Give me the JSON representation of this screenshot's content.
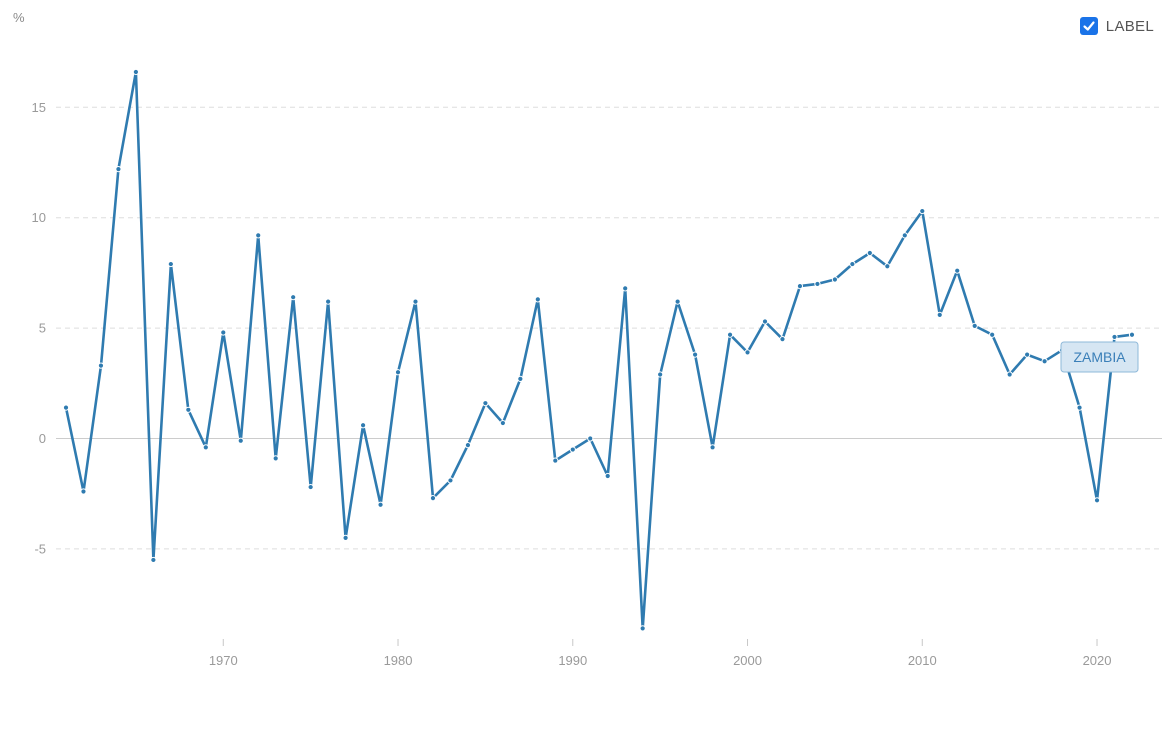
{
  "controls": {
    "label_toggle": "LABEL",
    "label_checked": true
  },
  "colors": {
    "series": "#2f7bb0",
    "grid": "#dddddd",
    "zero": "#cccccc",
    "checkbox": "#1a73e8"
  },
  "chart_data": {
    "type": "line",
    "title": "",
    "xlabel": "",
    "ylabel": "%",
    "xlim": [
      1960,
      2022
    ],
    "ylim": [
      -9,
      17
    ],
    "x_ticks": [
      1970,
      1980,
      1990,
      2000,
      2010,
      2020
    ],
    "y_ticks": [
      -5,
      0,
      5,
      10,
      15
    ],
    "grid": "horizontal dashed",
    "series": [
      {
        "name": "ZAMBIA",
        "x": [
          1961,
          1962,
          1963,
          1964,
          1965,
          1966,
          1967,
          1968,
          1969,
          1970,
          1971,
          1972,
          1973,
          1974,
          1975,
          1976,
          1977,
          1978,
          1979,
          1980,
          1981,
          1982,
          1983,
          1984,
          1985,
          1986,
          1987,
          1988,
          1989,
          1990,
          1991,
          1992,
          1993,
          1994,
          1995,
          1996,
          1997,
          1998,
          1999,
          2000,
          2001,
          2002,
          2003,
          2004,
          2005,
          2006,
          2007,
          2008,
          2009,
          2010,
          2011,
          2012,
          2013,
          2014,
          2015,
          2016,
          2017,
          2018,
          2019,
          2020,
          2021,
          2022
        ],
        "values": [
          1.4,
          -2.4,
          3.3,
          12.2,
          16.6,
          -5.5,
          7.9,
          1.3,
          -0.4,
          4.8,
          -0.1,
          9.2,
          -0.9,
          6.4,
          -2.2,
          6.2,
          -4.5,
          0.6,
          -3.0,
          3.0,
          6.2,
          -2.7,
          -1.9,
          -0.3,
          1.6,
          0.7,
          2.7,
          6.3,
          -1.0,
          -0.5,
          0.0,
          -1.7,
          6.8,
          -8.6,
          2.9,
          6.2,
          3.8,
          -0.4,
          4.7,
          3.9,
          5.3,
          4.5,
          6.9,
          7.0,
          7.2,
          7.9,
          8.4,
          7.8,
          9.2,
          10.3,
          5.6,
          7.6,
          5.1,
          4.7,
          2.9,
          3.8,
          3.5,
          4.0,
          1.4,
          -2.8,
          4.6,
          4.7
        ]
      }
    ],
    "series_label": "ZAMBIA"
  }
}
